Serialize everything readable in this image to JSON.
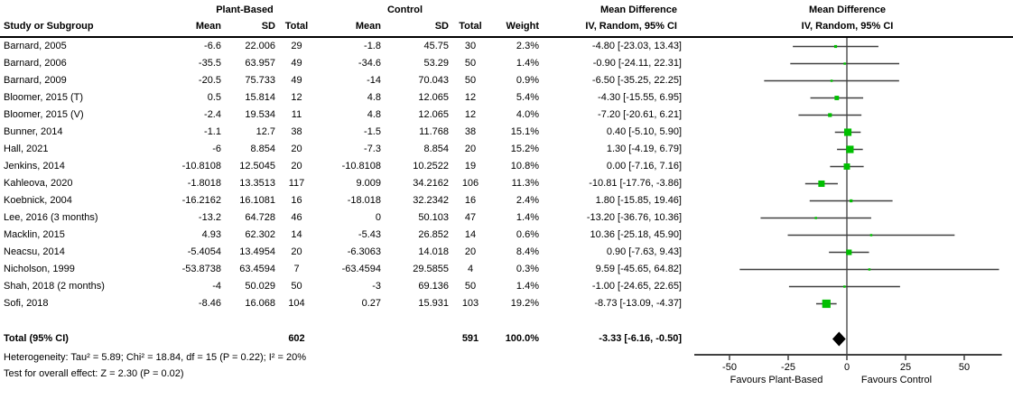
{
  "table_header": {
    "study": "Study or Subgroup",
    "group_treatment": "Plant-Based",
    "group_control": "Control",
    "mean": "Mean",
    "sd": "SD",
    "total": "Total",
    "weight": "Weight",
    "effect_line1": "Mean Difference",
    "effect_line2": "IV, Random, 95% CI",
    "plot_line1": "Mean Difference",
    "plot_line2": "IV, Random, 95% CI"
  },
  "chart_data": {
    "type": "forest",
    "effect_measure": "Mean Difference",
    "model": "IV, Random, 95% CI",
    "x_axis": {
      "ticks": [
        -50,
        -25,
        0,
        25,
        50
      ],
      "range": [
        -65,
        66
      ],
      "zero_line": 0
    },
    "favours_left": "Favours Plant-Based",
    "favours_right": "Favours Control",
    "studies": [
      {
        "name": "Barnard, 2005",
        "t_mean": "-6.6",
        "t_sd": "22.006",
        "t_total": "29",
        "c_mean": "-1.8",
        "c_sd": "45.75",
        "c_total": "30",
        "weight": "2.3%",
        "ci": "-4.80 [-23.03, 13.43]",
        "md": -4.8,
        "lo": -23.03,
        "hi": 13.43,
        "w": 2.3
      },
      {
        "name": "Barnard, 2006",
        "t_mean": "-35.5",
        "t_sd": "63.957",
        "t_total": "49",
        "c_mean": "-34.6",
        "c_sd": "53.29",
        "c_total": "50",
        "weight": "1.4%",
        "ci": "-0.90 [-24.11, 22.31]",
        "md": -0.9,
        "lo": -24.11,
        "hi": 22.31,
        "w": 1.4
      },
      {
        "name": "Barnard, 2009",
        "t_mean": "-20.5",
        "t_sd": "75.733",
        "t_total": "49",
        "c_mean": "-14",
        "c_sd": "70.043",
        "c_total": "50",
        "weight": "0.9%",
        "ci": "-6.50 [-35.25, 22.25]",
        "md": -6.5,
        "lo": -35.25,
        "hi": 22.25,
        "w": 0.9
      },
      {
        "name": "Bloomer, 2015 (T)",
        "t_mean": "0.5",
        "t_sd": "15.814",
        "t_total": "12",
        "c_mean": "4.8",
        "c_sd": "12.065",
        "c_total": "12",
        "weight": "5.4%",
        "ci": "-4.30 [-15.55, 6.95]",
        "md": -4.3,
        "lo": -15.55,
        "hi": 6.95,
        "w": 5.4
      },
      {
        "name": "Bloomer, 2015 (V)",
        "t_mean": "-2.4",
        "t_sd": "19.534",
        "t_total": "11",
        "c_mean": "4.8",
        "c_sd": "12.065",
        "c_total": "12",
        "weight": "4.0%",
        "ci": "-7.20 [-20.61, 6.21]",
        "md": -7.2,
        "lo": -20.61,
        "hi": 6.21,
        "w": 4.0
      },
      {
        "name": "Bunner, 2014",
        "t_mean": "-1.1",
        "t_sd": "12.7",
        "t_total": "38",
        "c_mean": "-1.5",
        "c_sd": "11.768",
        "c_total": "38",
        "weight": "15.1%",
        "ci": "0.40 [-5.10, 5.90]",
        "md": 0.4,
        "lo": -5.1,
        "hi": 5.9,
        "w": 15.1
      },
      {
        "name": "Hall, 2021",
        "t_mean": "-6",
        "t_sd": "8.854",
        "t_total": "20",
        "c_mean": "-7.3",
        "c_sd": "8.854",
        "c_total": "20",
        "weight": "15.2%",
        "ci": "1.30 [-4.19, 6.79]",
        "md": 1.3,
        "lo": -4.19,
        "hi": 6.79,
        "w": 15.2
      },
      {
        "name": "Jenkins, 2014",
        "t_mean": "-10.8108",
        "t_sd": "12.5045",
        "t_total": "20",
        "c_mean": "-10.8108",
        "c_sd": "10.2522",
        "c_total": "19",
        "weight": "10.8%",
        "ci": "0.00 [-7.16, 7.16]",
        "md": 0.0,
        "lo": -7.16,
        "hi": 7.16,
        "w": 10.8
      },
      {
        "name": "Kahleova, 2020",
        "t_mean": "-1.8018",
        "t_sd": "13.3513",
        "t_total": "117",
        "c_mean": "9.009",
        "c_sd": "34.2162",
        "c_total": "106",
        "weight": "11.3%",
        "ci": "-10.81 [-17.76, -3.86]",
        "md": -10.81,
        "lo": -17.76,
        "hi": -3.86,
        "w": 11.3
      },
      {
        "name": "Koebnick, 2004",
        "t_mean": "-16.2162",
        "t_sd": "16.1081",
        "t_total": "16",
        "c_mean": "-18.018",
        "c_sd": "32.2342",
        "c_total": "16",
        "weight": "2.4%",
        "ci": "1.80 [-15.85, 19.46]",
        "md": 1.8,
        "lo": -15.85,
        "hi": 19.46,
        "w": 2.4
      },
      {
        "name": "Lee, 2016 (3 months)",
        "t_mean": "-13.2",
        "t_sd": "64.728",
        "t_total": "46",
        "c_mean": "0",
        "c_sd": "50.103",
        "c_total": "47",
        "weight": "1.4%",
        "ci": "-13.20 [-36.76, 10.36]",
        "md": -13.2,
        "lo": -36.76,
        "hi": 10.36,
        "w": 1.4
      },
      {
        "name": "Macklin, 2015",
        "t_mean": "4.93",
        "t_sd": "62.302",
        "t_total": "14",
        "c_mean": "-5.43",
        "c_sd": "26.852",
        "c_total": "14",
        "weight": "0.6%",
        "ci": "10.36 [-25.18, 45.90]",
        "md": 10.36,
        "lo": -25.18,
        "hi": 45.9,
        "w": 0.6
      },
      {
        "name": "Neacsu, 2014",
        "t_mean": "-5.4054",
        "t_sd": "13.4954",
        "t_total": "20",
        "c_mean": "-6.3063",
        "c_sd": "14.018",
        "c_total": "20",
        "weight": "8.4%",
        "ci": "0.90 [-7.63, 9.43]",
        "md": 0.9,
        "lo": -7.63,
        "hi": 9.43,
        "w": 8.4
      },
      {
        "name": "Nicholson, 1999",
        "t_mean": "-53.8738",
        "t_sd": "63.4594",
        "t_total": "7",
        "c_mean": "-63.4594",
        "c_sd": "29.5855",
        "c_total": "4",
        "weight": "0.3%",
        "ci": "9.59 [-45.65, 64.82]",
        "md": 9.59,
        "lo": -45.65,
        "hi": 64.82,
        "w": 0.3
      },
      {
        "name": "Shah, 2018 (2 months)",
        "t_mean": "-4",
        "t_sd": "50.029",
        "t_total": "50",
        "c_mean": "-3",
        "c_sd": "69.136",
        "c_total": "50",
        "weight": "1.4%",
        "ci": "-1.00 [-24.65, 22.65]",
        "md": -1.0,
        "lo": -24.65,
        "hi": 22.65,
        "w": 1.4
      },
      {
        "name": "Sofi, 2018",
        "t_mean": "-8.46",
        "t_sd": "16.068",
        "t_total": "104",
        "c_mean": "0.27",
        "c_sd": "15.931",
        "c_total": "103",
        "weight": "19.2%",
        "ci": "-8.73 [-13.09, -4.37]",
        "md": -8.73,
        "lo": -13.09,
        "hi": -4.37,
        "w": 19.2
      }
    ],
    "total": {
      "label": "Total (95% CI)",
      "t_total": "602",
      "c_total": "591",
      "weight": "100.0%",
      "ci": "-3.33 [-6.16, -0.50]",
      "md": -3.33,
      "lo": -6.16,
      "hi": -0.5
    },
    "footnotes": [
      "Heterogeneity: Tau² = 5.89; Chi² = 18.84, df = 15 (P = 0.22); I² = 20%",
      "Test for overall effect: Z = 2.30 (P = 0.02)"
    ],
    "colors": {
      "square": "#00bf00",
      "diamond": "#000000",
      "ci_line": "#404040",
      "zero_line": "#808080",
      "axis": "#404040",
      "header_rule": "#000000"
    }
  }
}
